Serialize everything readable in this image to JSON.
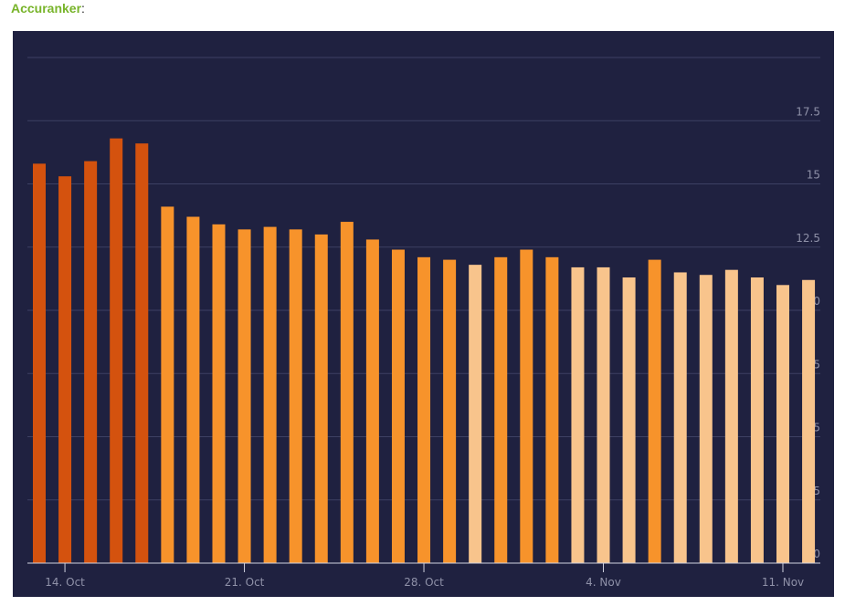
{
  "header": {
    "title": "Accuranker",
    "suffix": ":"
  },
  "chart_data": {
    "type": "bar",
    "categories": [
      null,
      "14. Oct",
      null,
      null,
      null,
      null,
      null,
      null,
      "21. Oct",
      null,
      null,
      null,
      null,
      null,
      null,
      "28. Oct",
      null,
      null,
      null,
      null,
      null,
      null,
      "4. Nov",
      null,
      null,
      null,
      null,
      null,
      null,
      "11. Nov",
      null
    ],
    "values": [
      15.8,
      15.3,
      15.9,
      16.8,
      16.6,
      14.1,
      13.7,
      13.4,
      13.2,
      13.3,
      13.2,
      13.0,
      13.5,
      12.8,
      12.4,
      12.1,
      12.0,
      11.8,
      12.1,
      12.4,
      12.1,
      11.7,
      11.7,
      11.3,
      12.0,
      11.5,
      11.4,
      11.6,
      11.3,
      11.0,
      11.2
    ],
    "colors": [
      "#d4520e",
      "#d4520e",
      "#d4520e",
      "#d4520e",
      "#d4520e",
      "#f7932b",
      "#f7932b",
      "#f7932b",
      "#f7932b",
      "#f7932b",
      "#f7932b",
      "#f7932b",
      "#f7932b",
      "#f7932b",
      "#f7932b",
      "#f7932b",
      "#f7932b",
      "#f8c48c",
      "#f7932b",
      "#f7932b",
      "#f7932b",
      "#f8c48c",
      "#f8c48c",
      "#f8c48c",
      "#f7932b",
      "#f8c48c",
      "#f8c48c",
      "#f8c48c",
      "#f8c48c",
      "#f8c48c",
      "#f8c48c"
    ],
    "ylim": [
      0,
      20
    ],
    "yticks": [
      0,
      2.5,
      5,
      7.5,
      10,
      12.5,
      15,
      17.5
    ],
    "grid": true
  }
}
